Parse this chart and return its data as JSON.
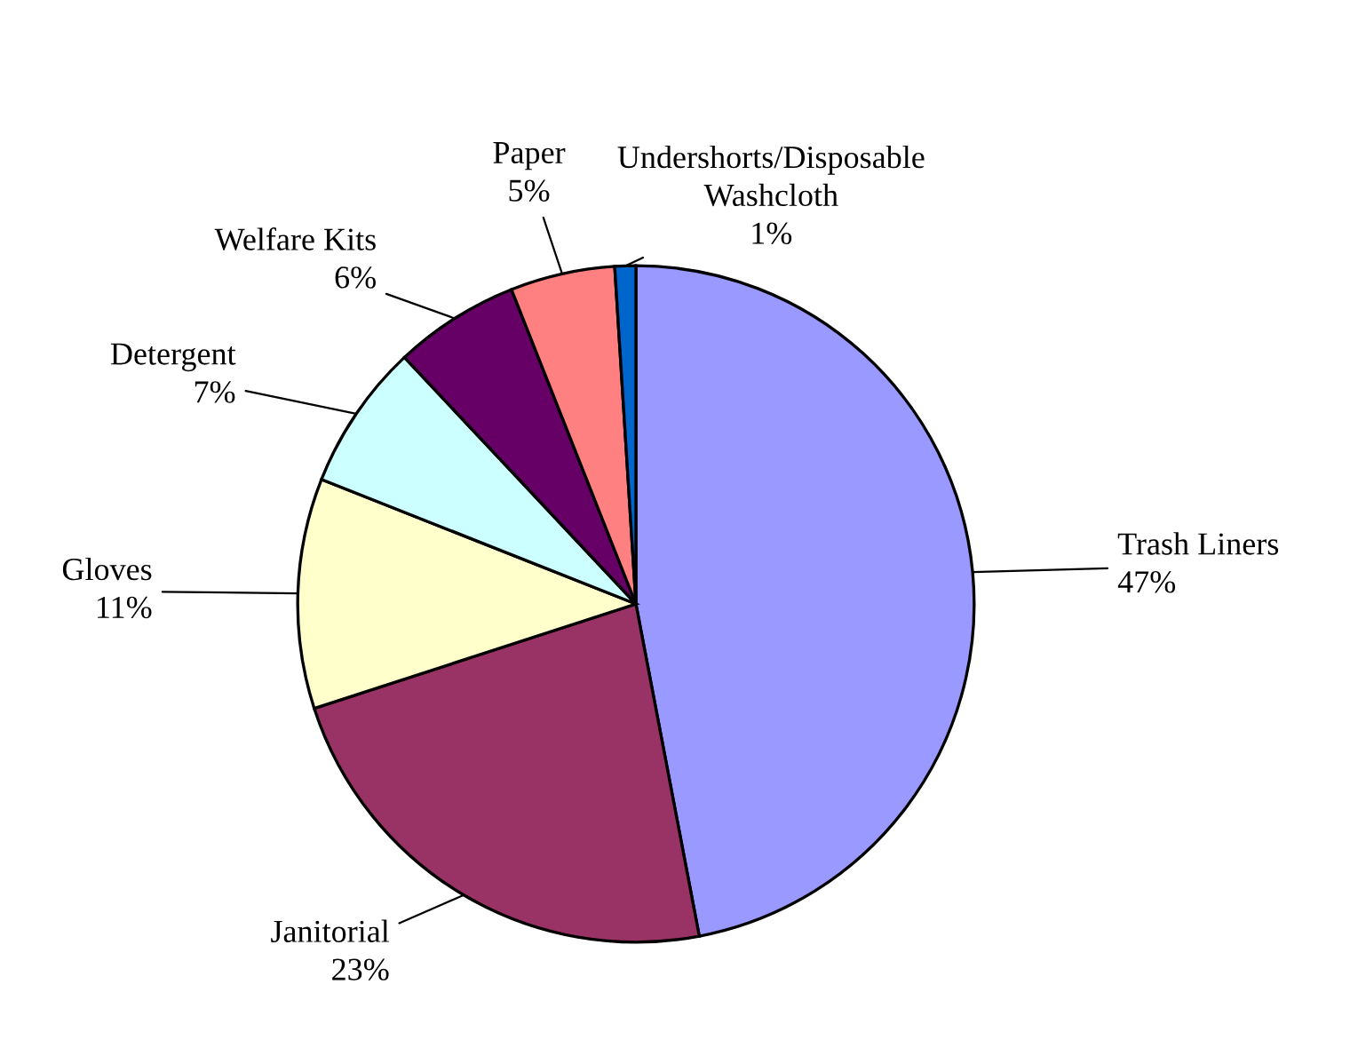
{
  "chart_data": {
    "type": "pie",
    "categories": [
      "Trash Liners",
      "Janitorial",
      "Gloves",
      "Detergent",
      "Welfare Kits",
      "Paper",
      "Undershorts/Disposable\nWashcloth"
    ],
    "values": [
      47,
      23,
      11,
      7,
      6,
      5,
      1
    ],
    "value_labels": [
      "47%",
      "23%",
      "11%",
      "7%",
      "6%",
      "5%",
      "1%"
    ],
    "colors": [
      "#9999ff",
      "#993366",
      "#ffffcc",
      "#ccffff",
      "#660066",
      "#ff8080",
      "#0066cc"
    ],
    "legend": false
  }
}
